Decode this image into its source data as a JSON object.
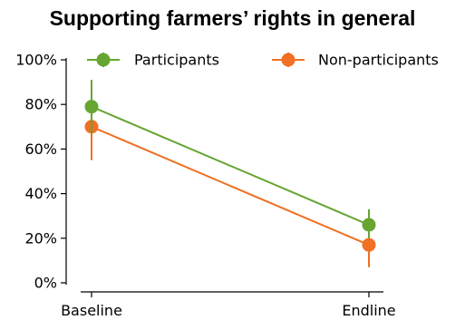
{
  "chart_data": {
    "type": "line",
    "title": "Supporting farmers’ rights in general",
    "xlabel": "",
    "ylabel": "",
    "categories": [
      "Baseline",
      "Endline"
    ],
    "ylim": [
      0,
      100
    ],
    "yticks": [
      0,
      20,
      40,
      60,
      80,
      100
    ],
    "ytick_labels": [
      "0%",
      "20%",
      "40%",
      "60%",
      "80%",
      "100%"
    ],
    "grid": false,
    "legend_position": "top",
    "series": [
      {
        "name": "Participants",
        "color": "#66a532",
        "values": [
          79,
          26
        ],
        "err_low": [
          67,
          20
        ],
        "err_high": [
          91,
          33
        ]
      },
      {
        "name": "Non-participants",
        "color": "#f07024",
        "values": [
          70,
          17
        ],
        "err_low": [
          55,
          7
        ],
        "err_high": [
          85,
          27
        ]
      }
    ]
  }
}
